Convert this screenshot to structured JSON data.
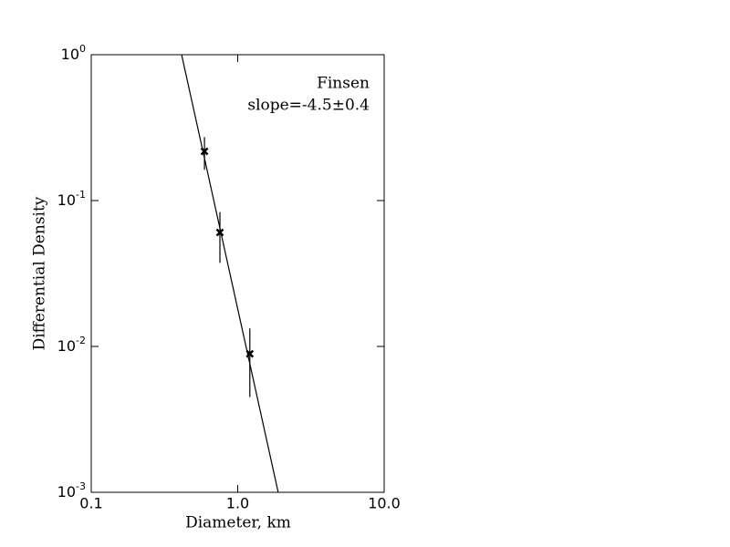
{
  "chart_data": {
    "type": "scatter",
    "annotations": [
      "Finsen",
      "slope=-4.5±0.4"
    ],
    "x_label": "Diameter, km",
    "y_label": "Differential Density",
    "x": [
      0.593,
      0.756,
      1.21
    ],
    "values": [
      0.2175,
      0.0604,
      0.0089
    ],
    "errors": [
      0.055,
      0.023,
      0.0044
    ],
    "color": "#000000",
    "fit": {
      "x": [
        0.414,
        1.89
      ],
      "values": [
        1,
        0.001
      ]
    },
    "xlim": [
      0.1,
      10
    ],
    "ylim": [
      0.001,
      1
    ],
    "log_x": true,
    "log_y": true,
    "xticks": [
      0.1,
      {
        "value": 1,
        "label": "1.0"
      },
      {
        "value": 10,
        "label": "10.0"
      }
    ],
    "yticks": [
      {
        "value": 0.001,
        "label": "10",
        "exponent": "-3"
      },
      {
        "value": 0.01,
        "label": "10",
        "exponent": "-2"
      },
      {
        "value": 0.1,
        "label": "10",
        "exponent": "-1"
      },
      {
        "value": 1,
        "label": "10",
        "exponent": "0"
      }
    ]
  }
}
